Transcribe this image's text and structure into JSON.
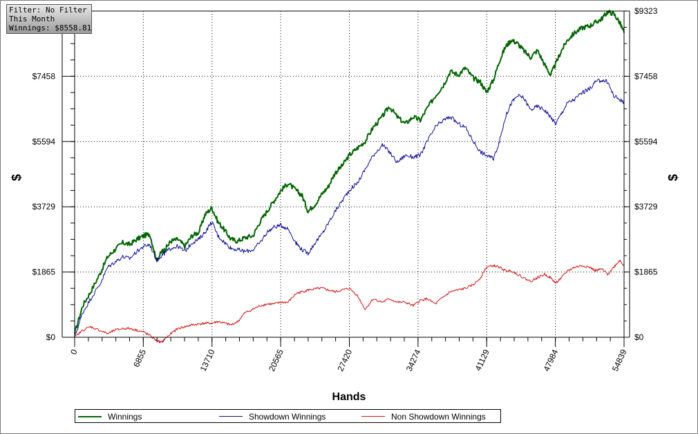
{
  "info": {
    "filter": "Filter: No Filter",
    "period": "This Month",
    "winnings": "Winnings: $8558.81"
  },
  "colors": {
    "winnings": "#006400",
    "showdown": "#0a0a96",
    "non_showdown": "#d21414"
  },
  "chart_data": {
    "type": "line",
    "title": "",
    "xlabel": "Hands",
    "ylabel": "$",
    "x_ticks": [
      "0",
      "6855",
      "13710",
      "20565",
      "27420",
      "34274",
      "41129",
      "47984",
      "54839"
    ],
    "y_ticks": [
      "$0",
      "$1865",
      "$3729",
      "$5594",
      "$7458",
      "$9323"
    ],
    "xlim": [
      0,
      54839
    ],
    "ylim": [
      -200,
      9323
    ],
    "grid": true,
    "legend_position": "bottom",
    "series": [
      {
        "name": "Winnings",
        "x": [
          0,
          800,
          1600,
          2500,
          3300,
          4000,
          4800,
          5500,
          6200,
          6900,
          7500,
          8200,
          8700,
          9000,
          9600,
          10300,
          11000,
          11700,
          12400,
          13000,
          13700,
          14300,
          15000,
          15600,
          16300,
          17000,
          17800,
          18500,
          19200,
          19900,
          20600,
          21300,
          22100,
          22700,
          23300,
          24000,
          24700,
          25300,
          26000,
          26700,
          27400,
          28200,
          29000,
          29800,
          30700,
          31400,
          32200,
          33000,
          33800,
          34500,
          35200,
          36000,
          36800,
          37500,
          38300,
          39000,
          39800,
          40500,
          41100,
          41800,
          42400,
          43000,
          43600,
          44200,
          44800,
          45500,
          46200,
          46900,
          47500,
          48000,
          48600,
          49200,
          49900,
          50700,
          51400,
          52000,
          52600,
          53200,
          53800,
          54400,
          54839
        ],
        "values": [
          100,
          900,
          1300,
          1800,
          2300,
          2500,
          2700,
          2650,
          2800,
          2900,
          2950,
          2200,
          2450,
          2500,
          2750,
          2800,
          2600,
          2900,
          3000,
          3500,
          3700,
          3300,
          3050,
          2800,
          2750,
          2850,
          2900,
          3300,
          3600,
          3900,
          4200,
          4400,
          4200,
          4050,
          3600,
          3800,
          4100,
          4300,
          4700,
          4900,
          5200,
          5400,
          5600,
          6000,
          6300,
          6600,
          6300,
          6100,
          6300,
          6200,
          6550,
          6900,
          7200,
          7600,
          7500,
          7700,
          7400,
          7300,
          7000,
          7350,
          7900,
          8300,
          8500,
          8400,
          8200,
          8000,
          8200,
          7800,
          7500,
          7800,
          8200,
          8500,
          8700,
          8850,
          8900,
          9000,
          9100,
          9300,
          9250,
          9000,
          8700
        ]
      },
      {
        "name": "Showdown Winnings",
        "x": [
          0,
          800,
          1600,
          2500,
          3300,
          4000,
          4800,
          5500,
          6200,
          6900,
          7500,
          8200,
          8700,
          9000,
          9600,
          10300,
          11000,
          11700,
          12400,
          13000,
          13700,
          14300,
          15000,
          15600,
          16300,
          17000,
          17800,
          18500,
          19200,
          19900,
          20600,
          21300,
          22100,
          22700,
          23300,
          24000,
          24700,
          25300,
          26000,
          26700,
          27400,
          28200,
          29000,
          29800,
          30700,
          31400,
          32200,
          33000,
          33800,
          34500,
          35200,
          36000,
          36800,
          37500,
          38300,
          39000,
          39800,
          40500,
          41100,
          41800,
          42400,
          43000,
          43600,
          44200,
          44800,
          45500,
          46200,
          46900,
          47500,
          48000,
          48600,
          49200,
          49900,
          50700,
          51400,
          52000,
          52600,
          53200,
          53800,
          54400,
          54839
        ],
        "values": [
          0,
          700,
          1100,
          1500,
          2000,
          2150,
          2300,
          2250,
          2450,
          2600,
          2650,
          2200,
          2350,
          2400,
          2550,
          2600,
          2450,
          2700,
          2800,
          3000,
          3300,
          2900,
          2700,
          2550,
          2500,
          2450,
          2500,
          2700,
          3000,
          3150,
          3200,
          3100,
          2700,
          2500,
          2400,
          2700,
          2950,
          3250,
          3600,
          3900,
          4200,
          4400,
          4800,
          5200,
          5500,
          5300,
          5000,
          5200,
          5150,
          5200,
          5600,
          6000,
          6200,
          6300,
          6100,
          6000,
          5600,
          5300,
          5200,
          5100,
          5600,
          6300,
          6700,
          6900,
          6850,
          6500,
          6600,
          6500,
          6300,
          6100,
          6400,
          6700,
          6800,
          7000,
          7100,
          7300,
          7350,
          7300,
          6900,
          6800,
          6700
        ]
      },
      {
        "name": "Non Showdown Winnings",
        "x": [
          0,
          800,
          1600,
          2500,
          3300,
          4000,
          4800,
          5500,
          6200,
          6900,
          7500,
          8200,
          8700,
          9000,
          9600,
          10300,
          11000,
          11700,
          12400,
          13000,
          13700,
          14300,
          15000,
          15600,
          16300,
          17000,
          17800,
          18500,
          19200,
          19900,
          20600,
          21300,
          22100,
          22700,
          23300,
          24000,
          24700,
          25300,
          26000,
          26700,
          27400,
          28200,
          29000,
          29800,
          30700,
          31400,
          32200,
          33000,
          33800,
          34500,
          35200,
          36000,
          36800,
          37500,
          38300,
          39000,
          39800,
          40500,
          41100,
          41800,
          42400,
          43000,
          43600,
          44200,
          44800,
          45500,
          46200,
          46900,
          47500,
          48000,
          48600,
          49200,
          49900,
          50700,
          51400,
          52000,
          52600,
          53200,
          53800,
          54400,
          54839
        ],
        "values": [
          0,
          200,
          300,
          200,
          100,
          200,
          250,
          250,
          200,
          150,
          50,
          -100,
          -150,
          -50,
          100,
          250,
          300,
          350,
          380,
          400,
          400,
          450,
          400,
          350,
          450,
          700,
          800,
          900,
          950,
          950,
          1000,
          1000,
          1250,
          1300,
          1350,
          1380,
          1400,
          1350,
          1300,
          1350,
          1400,
          1200,
          800,
          1100,
          1000,
          1100,
          1000,
          1000,
          900,
          1050,
          1100,
          950,
          1150,
          1300,
          1350,
          1400,
          1500,
          1700,
          2000,
          2050,
          2000,
          1900,
          1900,
          1800,
          1700,
          1600,
          1700,
          1800,
          1700,
          1550,
          1700,
          1900,
          2000,
          2050,
          2000,
          1900,
          1950,
          1800,
          2000,
          2200,
          2050
        ]
      }
    ]
  }
}
